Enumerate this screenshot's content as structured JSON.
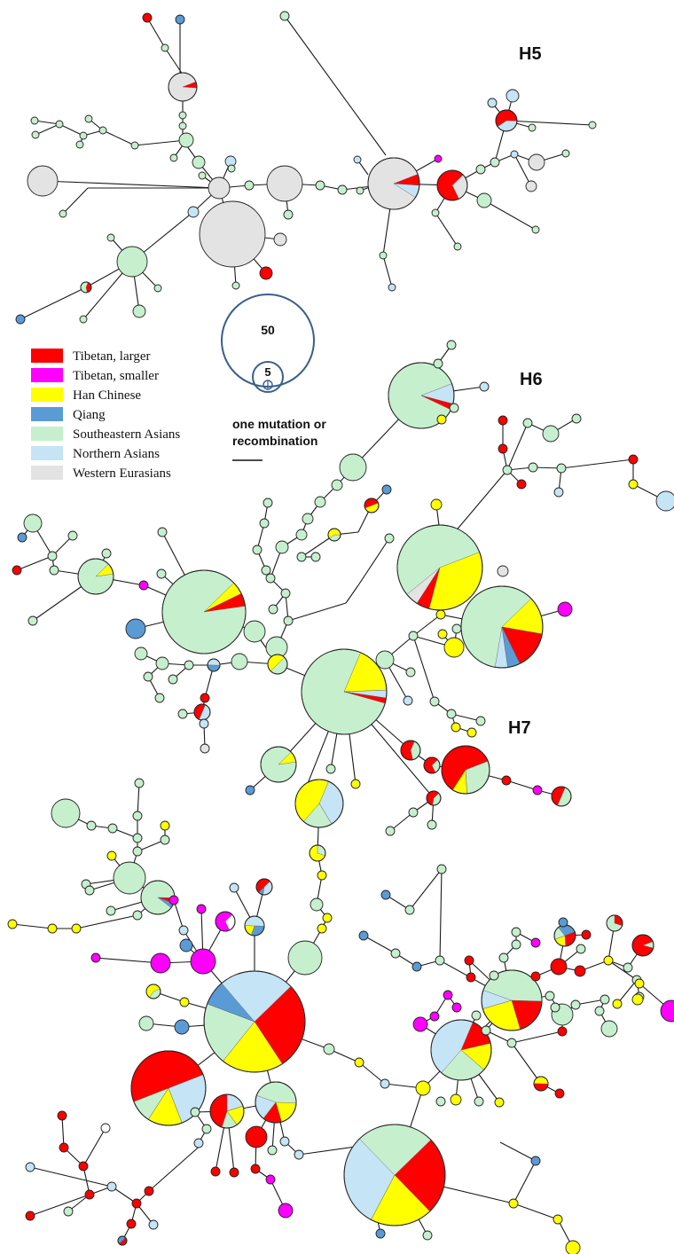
{
  "network_labels": {
    "h5": "H5",
    "h6": "H6",
    "h7": "H7"
  },
  "legend": {
    "items": [
      {
        "label": "Tibetan, larger",
        "color": "#ff0000"
      },
      {
        "label": "Tibetan, smaller",
        "color": "#ff00ff"
      },
      {
        "label": "Han Chinese",
        "color": "#ffff00"
      },
      {
        "label": "Qiang",
        "color": "#5b9bd5"
      },
      {
        "label": "Southeastern Asians",
        "color": "#c6efce"
      },
      {
        "label": "Northern Asians",
        "color": "#c5e4f5"
      },
      {
        "label": "Western Eurasians",
        "color": "#e3e3e3"
      }
    ]
  },
  "scale": {
    "large_label": "50",
    "small_label": "5",
    "circle_color": "#3a5f8a"
  },
  "mutation_note": {
    "line1": "one mutation or",
    "line2": "recombination"
  },
  "colors": {
    "tibetan_larger": "#ff0000",
    "tibetan_smaller": "#ff00ff",
    "han": "#ffff00",
    "qiang": "#5b9bd5",
    "southeast": "#c6efce",
    "northern": "#c5e4f5",
    "western": "#e3e3e3",
    "white": "#ffffff"
  }
}
